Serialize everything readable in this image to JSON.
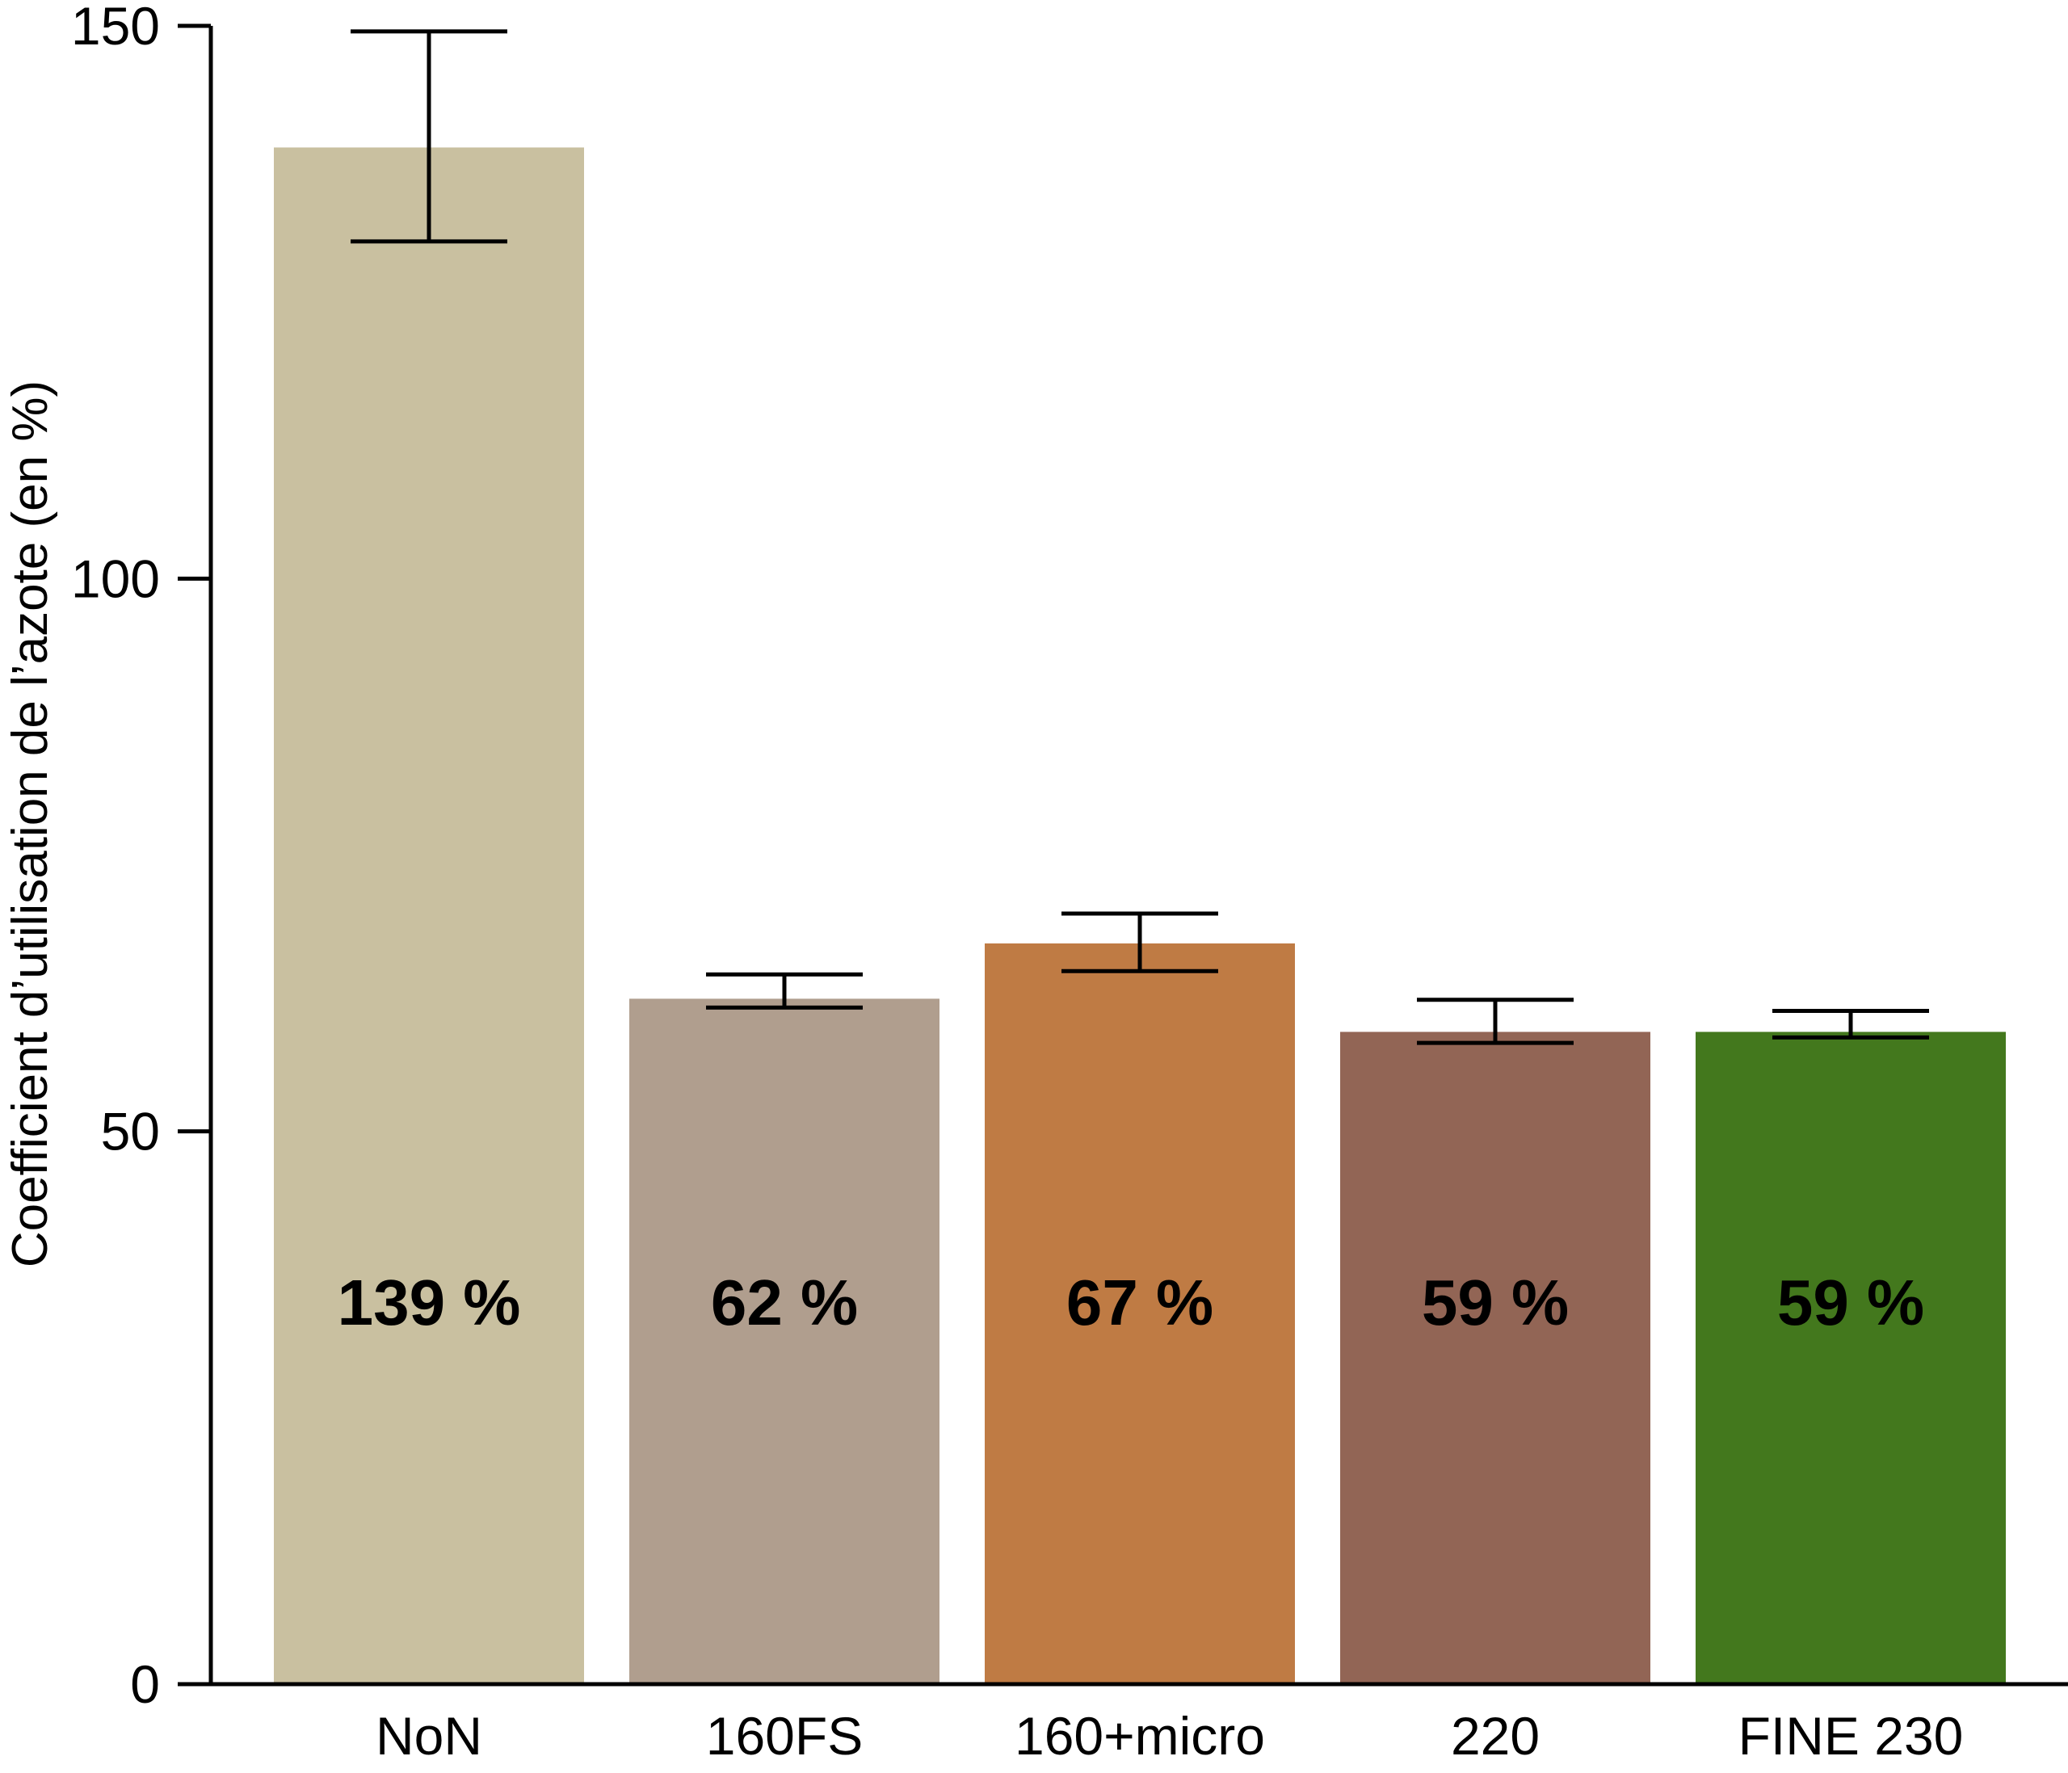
{
  "chart_data": {
    "type": "bar",
    "title": "",
    "xlabel": "",
    "ylabel": "Coefficient d’utilisation de l’azote (en %)",
    "ylim": [
      0,
      150
    ],
    "yticks": [
      0,
      50,
      100,
      150
    ],
    "grid": false,
    "legend": "none",
    "categories": [
      "NoN",
      "160FS",
      "160+micro",
      "220",
      "FINE 230"
    ],
    "values": [
      139,
      62,
      67,
      59,
      59
    ],
    "error_low": [
      130.5,
      61.2,
      64.5,
      58,
      58.5
    ],
    "error_high": [
      149.5,
      64.2,
      69.7,
      61.9,
      60.9
    ],
    "data_labels": [
      "139 %",
      "62 %",
      "67 %",
      "59 %",
      "59 %"
    ],
    "colors": [
      "#c9c0a0",
      "#b09e8e",
      "#bf7b44",
      "#926555",
      "#43781d"
    ]
  }
}
